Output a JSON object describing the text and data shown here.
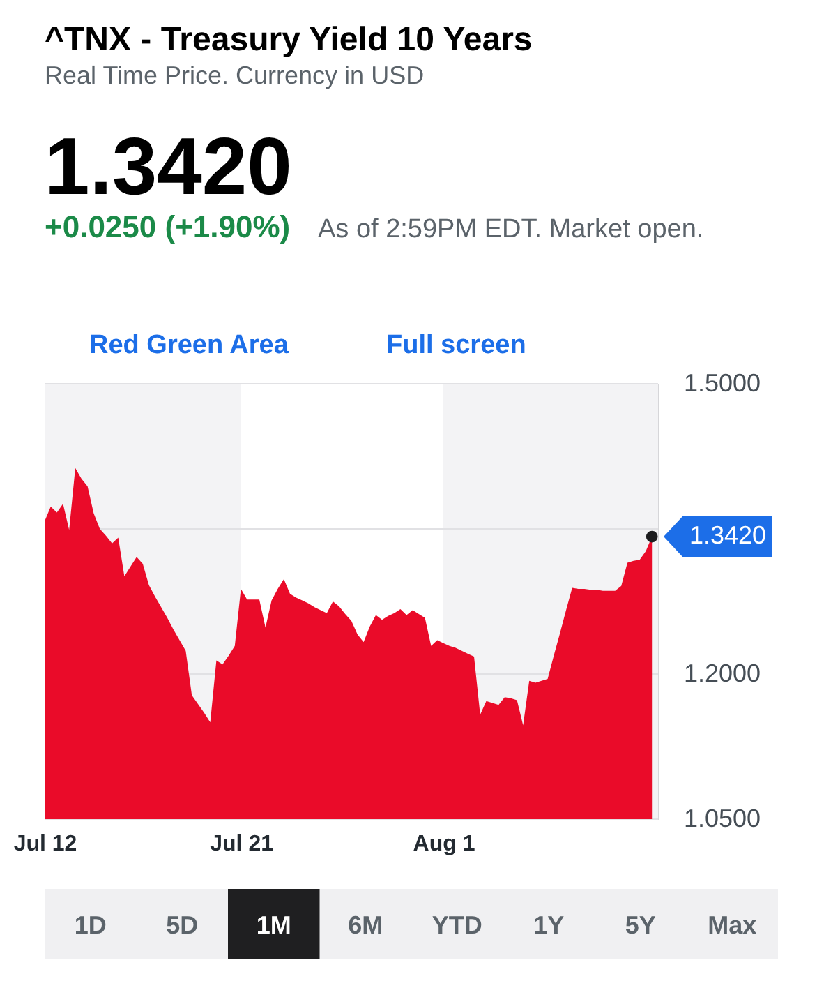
{
  "chart_data": {
    "type": "area",
    "title": "^TNX - Treasury Yield 10 Years",
    "subtitle": "Real Time Price. Currency in USD",
    "categories": [
      "Jul 12",
      null,
      null,
      null,
      null,
      null,
      null,
      null,
      null,
      null,
      null,
      null,
      null,
      null,
      null,
      null,
      null,
      null,
      null,
      null,
      null,
      null,
      null,
      null,
      null,
      null,
      null,
      null,
      null,
      null,
      null,
      null,
      "Jul 21",
      null,
      null,
      null,
      null,
      null,
      null,
      null,
      null,
      null,
      null,
      null,
      null,
      null,
      null,
      null,
      null,
      null,
      null,
      null,
      null,
      null,
      null,
      null,
      null,
      null,
      null,
      null,
      null,
      null,
      null,
      null,
      null,
      "Aug 1",
      null,
      null,
      null,
      null,
      null,
      null,
      null,
      null,
      null,
      null,
      null,
      null,
      null,
      null,
      null,
      null,
      null,
      null,
      null,
      null,
      null,
      null,
      null,
      null,
      null,
      null,
      null,
      null,
      null,
      null,
      null,
      null,
      null,
      null,
      null
    ],
    "series": [
      {
        "color": "#ea0b29",
        "values": [
          1.358,
          1.373,
          1.367,
          1.376,
          1.349,
          1.413,
          1.402,
          1.394,
          1.366,
          1.35,
          1.343,
          1.335,
          1.341,
          1.301,
          1.311,
          1.321,
          1.314,
          1.292,
          1.28,
          1.269,
          1.258,
          1.246,
          1.235,
          1.224,
          1.178,
          1.169,
          1.16,
          1.15,
          1.214,
          1.21,
          1.219,
          1.229,
          1.288,
          1.277,
          1.277,
          1.277,
          1.248,
          1.276,
          1.288,
          1.298,
          1.283,
          1.279,
          1.276,
          1.273,
          1.269,
          1.266,
          1.263,
          1.275,
          1.27,
          1.262,
          1.255,
          1.241,
          1.233,
          1.249,
          1.261,
          1.256,
          1.26,
          1.263,
          1.267,
          1.261,
          1.266,
          1.262,
          1.258,
          1.229,
          1.235,
          1.232,
          1.229,
          1.227,
          1.224,
          1.221,
          1.218,
          1.158,
          1.172,
          1.17,
          1.168,
          1.176,
          1.175,
          1.173,
          1.147,
          1.193,
          1.191,
          1.193,
          1.195,
          1.219,
          1.242,
          1.266,
          1.289,
          1.288,
          1.288,
          1.287,
          1.287,
          1.286,
          1.286,
          1.286,
          1.291,
          1.315,
          1.317,
          1.318,
          1.327,
          1.342,
          null
        ]
      },
      {
        "type": "scatter",
        "color": "#1d1d1f",
        "values": [
          null,
          null,
          null,
          null,
          null,
          null,
          null,
          null,
          null,
          null,
          null,
          null,
          null,
          null,
          null,
          null,
          null,
          null,
          null,
          null,
          null,
          null,
          null,
          null,
          null,
          null,
          null,
          null,
          null,
          null,
          null,
          null,
          null,
          null,
          null,
          null,
          null,
          null,
          null,
          null,
          null,
          null,
          null,
          null,
          null,
          null,
          null,
          null,
          null,
          null,
          null,
          null,
          null,
          null,
          null,
          null,
          null,
          null,
          null,
          null,
          null,
          null,
          null,
          null,
          null,
          null,
          null,
          null,
          null,
          null,
          null,
          null,
          null,
          null,
          null,
          null,
          null,
          null,
          null,
          null,
          null,
          null,
          null,
          null,
          null,
          null,
          null,
          null,
          null,
          null,
          null,
          null,
          null,
          null,
          null,
          null,
          null,
          null,
          null,
          1.342,
          null
        ]
      }
    ],
    "ylim": [
      1.05,
      1.5
    ],
    "yticks": [
      {
        "value": 1.05,
        "label": "1.0500"
      },
      {
        "value": 1.2,
        "label": "1.2000"
      },
      {
        "value": 1.35,
        "label": null
      },
      {
        "value": 1.5,
        "label": "1.5000"
      }
    ],
    "grid": "y",
    "bands": [
      {
        "axis": "x",
        "from": "Jul 21",
        "to": "Aug 1",
        "color": "#ffffff"
      }
    ],
    "annotations": [
      "1.3420",
      "+0.0250 (+1.90%)",
      "As of 2:59PM EDT. Market open.",
      "Red Green Area",
      "Full screen",
      "1.3420",
      "1D",
      "5D",
      "1M",
      "6M",
      "YTD",
      "1Y",
      "5Y",
      "Max"
    ]
  }
}
